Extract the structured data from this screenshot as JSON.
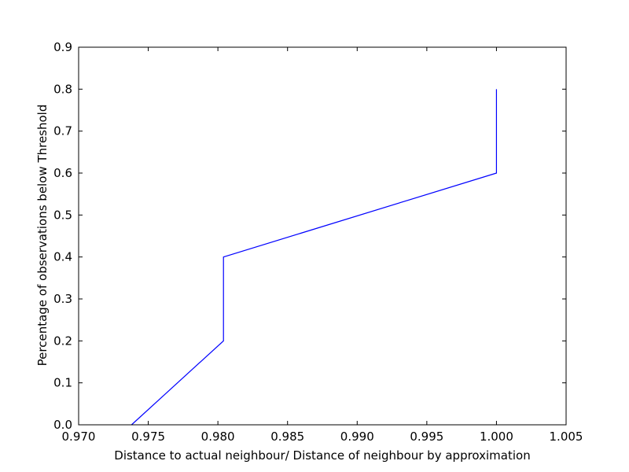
{
  "chart_data": {
    "type": "line",
    "title": "",
    "xlabel": "Distance to actual neighbour/ Distance of neighbour by approximation",
    "ylabel": "Percentage of observations below Threshold",
    "xlim": [
      0.97,
      1.005
    ],
    "ylim": [
      0.0,
      0.9
    ],
    "x_ticks": [
      "0.970",
      "0.975",
      "0.980",
      "0.985",
      "0.990",
      "0.995",
      "1.000",
      "1.005"
    ],
    "y_ticks": [
      "0.0",
      "0.1",
      "0.2",
      "0.3",
      "0.4",
      "0.5",
      "0.6",
      "0.7",
      "0.8",
      "0.9"
    ],
    "grid": false,
    "legend": "none",
    "series": [
      {
        "color": "#0000ff",
        "x": [
          0.9738,
          0.9804,
          0.9804,
          1.0,
          1.0
        ],
        "y": [
          0.0,
          0.2,
          0.4,
          0.6,
          0.8
        ]
      }
    ]
  }
}
